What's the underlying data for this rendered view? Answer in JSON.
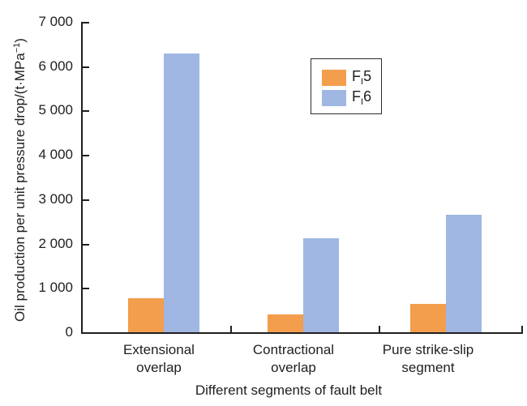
{
  "chart_data": {
    "type": "bar",
    "title": "",
    "xlabel": "Different segments of fault belt",
    "ylabel": "Oil production per unit pressure drop/(t·MPa⁻¹)",
    "ylabel_parts": {
      "main": "Oil production per unit pressure drop/(t·MPa",
      "sup": "−1",
      "close": ")"
    },
    "categories": [
      "Extensional overlap",
      "Contractional overlap",
      "Pure strike-slip segment"
    ],
    "categories_lines": [
      [
        "Extensional",
        "overlap"
      ],
      [
        "Contractional",
        "overlap"
      ],
      [
        "Pure strike-slip",
        "segment"
      ]
    ],
    "series": [
      {
        "name": "FI5",
        "name_base": "F",
        "name_sub": "I",
        "name_digit": "5",
        "color": "#F29E4C",
        "values": [
          760,
          400,
          640
        ]
      },
      {
        "name": "FI6",
        "name_base": "F",
        "name_sub": "I",
        "name_digit": "6",
        "color": "#A0B7E3",
        "values": [
          6280,
          2120,
          2650
        ]
      }
    ],
    "ylim": [
      0,
      7000
    ],
    "ytick_values": [
      0,
      1000,
      2000,
      3000,
      4000,
      5000,
      6000,
      7000
    ],
    "ytick_labels": [
      "0",
      "1 000",
      "2 000",
      "3 000",
      "4 000",
      "5 000",
      "6 000",
      "7 000"
    ],
    "grid": false,
    "legend_position": "upper-right-inside",
    "axis_color": "#1f1f1f",
    "background_color": "#ffffff"
  }
}
